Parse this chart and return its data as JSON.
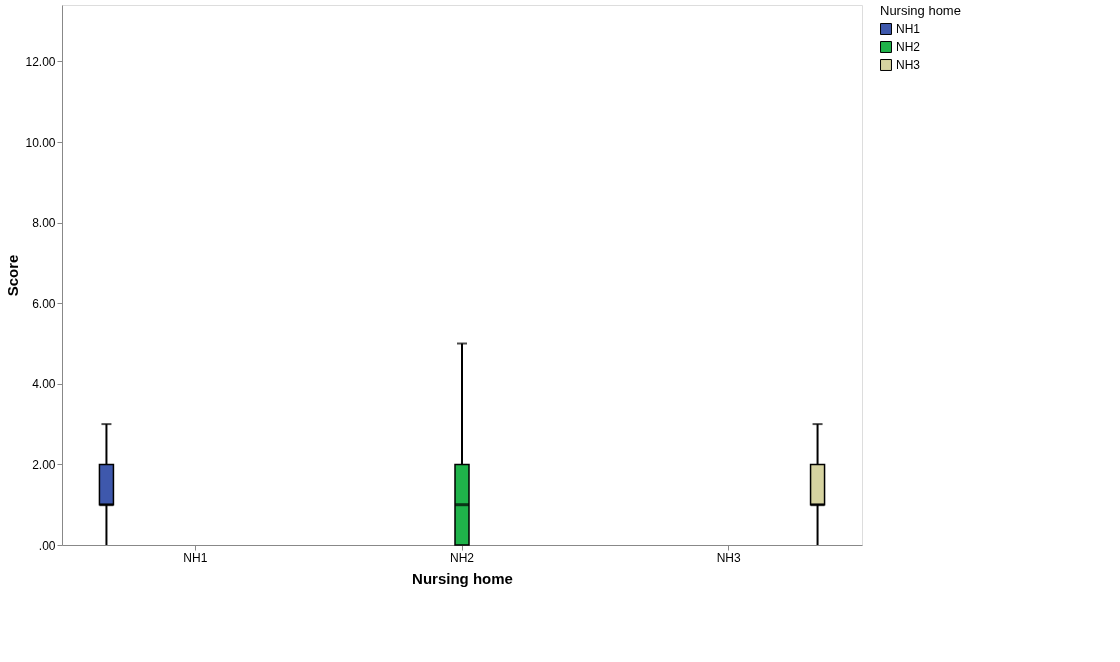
{
  "chart_data": {
    "type": "box",
    "xlabel": "Nursing home",
    "ylabel": "Score",
    "legend_title": "Nursing home",
    "categories": [
      "NH1",
      "NH2",
      "NH3"
    ],
    "series": [
      {
        "name": "NH1",
        "color": "#3e58ac",
        "boxes": [
          {
            "low": 0,
            "q1": 1,
            "median": 1,
            "q3": 2,
            "high": 3
          },
          null,
          null
        ]
      },
      {
        "name": "NH2",
        "color": "#1fb34a",
        "boxes": [
          null,
          {
            "low": 0,
            "q1": 0,
            "median": 1,
            "q3": 2,
            "high": 5
          },
          null
        ]
      },
      {
        "name": "NH3",
        "color": "#d6d3a0",
        "boxes": [
          null,
          null,
          {
            "low": 0,
            "q1": 1,
            "median": 1,
            "q3": 2,
            "high": 3
          }
        ]
      }
    ],
    "ylim": [
      0,
      13.4
    ],
    "yticks": [
      {
        "value": 0,
        "label": ".00"
      },
      {
        "value": 2,
        "label": "2.00"
      },
      {
        "value": 4,
        "label": "4.00"
      },
      {
        "value": 6,
        "label": "6.00"
      },
      {
        "value": 8,
        "label": "8.00"
      },
      {
        "value": 10,
        "label": "10.00"
      },
      {
        "value": 12,
        "label": "12.00"
      }
    ],
    "grid": false,
    "legend": "top right"
  }
}
